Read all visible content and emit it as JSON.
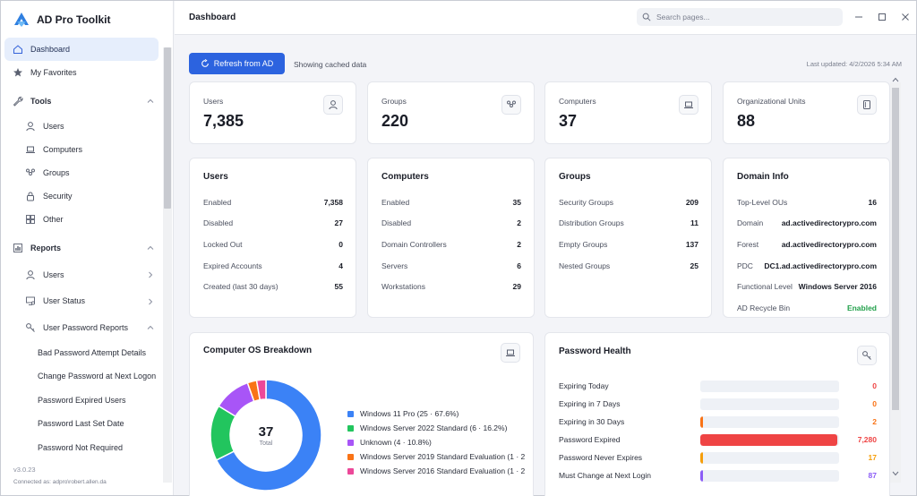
{
  "app": {
    "title": "AD Pro Toolkit",
    "version": "v3.0.23",
    "connected": "Connected as: adpro\\robert.allen.da"
  },
  "sidebar": {
    "items": [
      {
        "label": "Dashboard",
        "icon": "home-icon",
        "kind": "top",
        "active": true
      },
      {
        "label": "My Favorites",
        "icon": "star-icon",
        "kind": "top"
      },
      {
        "label": "Tools",
        "icon": "wrench-icon",
        "kind": "section",
        "chevron": "up"
      },
      {
        "label": "Users",
        "icon": "user-icon",
        "kind": "sub"
      },
      {
        "label": "Computers",
        "icon": "laptop-icon",
        "kind": "sub"
      },
      {
        "label": "Groups",
        "icon": "group-icon",
        "kind": "sub"
      },
      {
        "label": "Security",
        "icon": "lock-icon",
        "kind": "sub"
      },
      {
        "label": "Other",
        "icon": "grid-icon",
        "kind": "sub"
      },
      {
        "label": "Reports",
        "icon": "chart-icon",
        "kind": "section",
        "chevron": "up"
      },
      {
        "label": "Users",
        "icon": "user-icon",
        "kind": "sub",
        "chevron": "right"
      },
      {
        "label": "User Status",
        "icon": "user-status-icon",
        "kind": "sub",
        "chevron": "right"
      },
      {
        "label": "User Password Reports",
        "icon": "key-icon",
        "kind": "sub",
        "chevron": "up"
      },
      {
        "label": "Bad Password Attempt Details",
        "kind": "subsub"
      },
      {
        "label": "Change Password at Next Logon",
        "kind": "subsub"
      },
      {
        "label": "Password Expired Users",
        "kind": "subsub"
      },
      {
        "label": "Password Last Set Date",
        "kind": "subsub"
      },
      {
        "label": "Password Not Required",
        "kind": "subsub"
      }
    ]
  },
  "header": {
    "title": "Dashboard",
    "search_placeholder": "Search pages..."
  },
  "toolbar": {
    "refresh_label": "Refresh from AD",
    "cached_label": "Showing cached data",
    "last_updated": "Last updated: 4/2/2026 5:34 AM"
  },
  "stats": [
    {
      "label": "Users",
      "value": "7,385",
      "icon": "user-icon"
    },
    {
      "label": "Groups",
      "value": "220",
      "icon": "group-icon"
    },
    {
      "label": "Computers",
      "value": "37",
      "icon": "laptop-icon"
    },
    {
      "label": "Organizational Units",
      "value": "88",
      "icon": "folder-icon"
    }
  ],
  "details": [
    {
      "title": "Users",
      "rows": [
        {
          "k": "Enabled",
          "v": "7,358"
        },
        {
          "k": "Disabled",
          "v": "27"
        },
        {
          "k": "Locked Out",
          "v": "0"
        },
        {
          "k": "Expired Accounts",
          "v": "4"
        },
        {
          "k": "Created (last 30 days)",
          "v": "55"
        }
      ]
    },
    {
      "title": "Computers",
      "rows": [
        {
          "k": "Enabled",
          "v": "35"
        },
        {
          "k": "Disabled",
          "v": "2"
        },
        {
          "k": "Domain Controllers",
          "v": "2"
        },
        {
          "k": "Servers",
          "v": "6"
        },
        {
          "k": "Workstations",
          "v": "29"
        }
      ]
    },
    {
      "title": "Groups",
      "rows": [
        {
          "k": "Security Groups",
          "v": "209"
        },
        {
          "k": "Distribution Groups",
          "v": "11"
        },
        {
          "k": "Empty Groups",
          "v": "137"
        },
        {
          "k": "Nested Groups",
          "v": "25"
        }
      ]
    },
    {
      "title": "Domain Info",
      "rows": [
        {
          "k": "Top-Level OUs",
          "v": "16"
        },
        {
          "k": "Domain",
          "v": "ad.activedirectorypro.com"
        },
        {
          "k": "Forest",
          "v": "ad.activedirectorypro.com"
        },
        {
          "k": "PDC",
          "v": "DC1.ad.activedirectorypro.com"
        },
        {
          "k": "Functional Level",
          "v": "Windows Server 2016"
        },
        {
          "k": "AD Recycle Bin",
          "v": "Enabled",
          "status": "ok"
        }
      ]
    }
  ],
  "os_breakdown": {
    "title": "Computer OS Breakdown",
    "total": "37",
    "total_label": "Total",
    "colors": [
      "#3b82f6",
      "#22c55e",
      "#a855f7",
      "#f97316",
      "#ec4899"
    ]
  },
  "password_health": {
    "title": "Password Health",
    "scale_max": 7385,
    "rows": [
      {
        "label": "Expiring Today",
        "value": 0,
        "color": "#ef4444"
      },
      {
        "label": "Expiring in 7 Days",
        "value": 0,
        "color": "#f97316"
      },
      {
        "label": "Expiring in 30 Days",
        "value": 2,
        "color": "#f97316"
      },
      {
        "label": "Password Expired",
        "value": 7280,
        "display": "7,280",
        "color": "#ef4444"
      },
      {
        "label": "Password Never Expires",
        "value": 17,
        "color": "#f59e0b"
      },
      {
        "label": "Must Change at Next Login",
        "value": 87,
        "color": "#8b5cf6"
      }
    ]
  },
  "chart_data": {
    "type": "pie",
    "categories": [
      "Windows 11 Pro",
      "Windows Server 2022 Standard",
      "Unknown",
      "Windows Server 2019 Standard Evaluation",
      "Windows Server 2016 Standard Evaluation"
    ],
    "values": [
      25,
      6,
      4,
      1,
      1
    ],
    "legend": [
      "Windows 11 Pro  (25 · 67.6%)",
      "Windows Server 2022 Standard  (6 · 16.2%)",
      "Unknown  (4 · 10.8%)",
      "Windows Server 2019 Standard Evaluation  (1 · 2",
      "Windows Server 2016 Standard Evaluation  (1 · 2"
    ],
    "title": "Computer OS Breakdown",
    "legend_position": "right"
  }
}
